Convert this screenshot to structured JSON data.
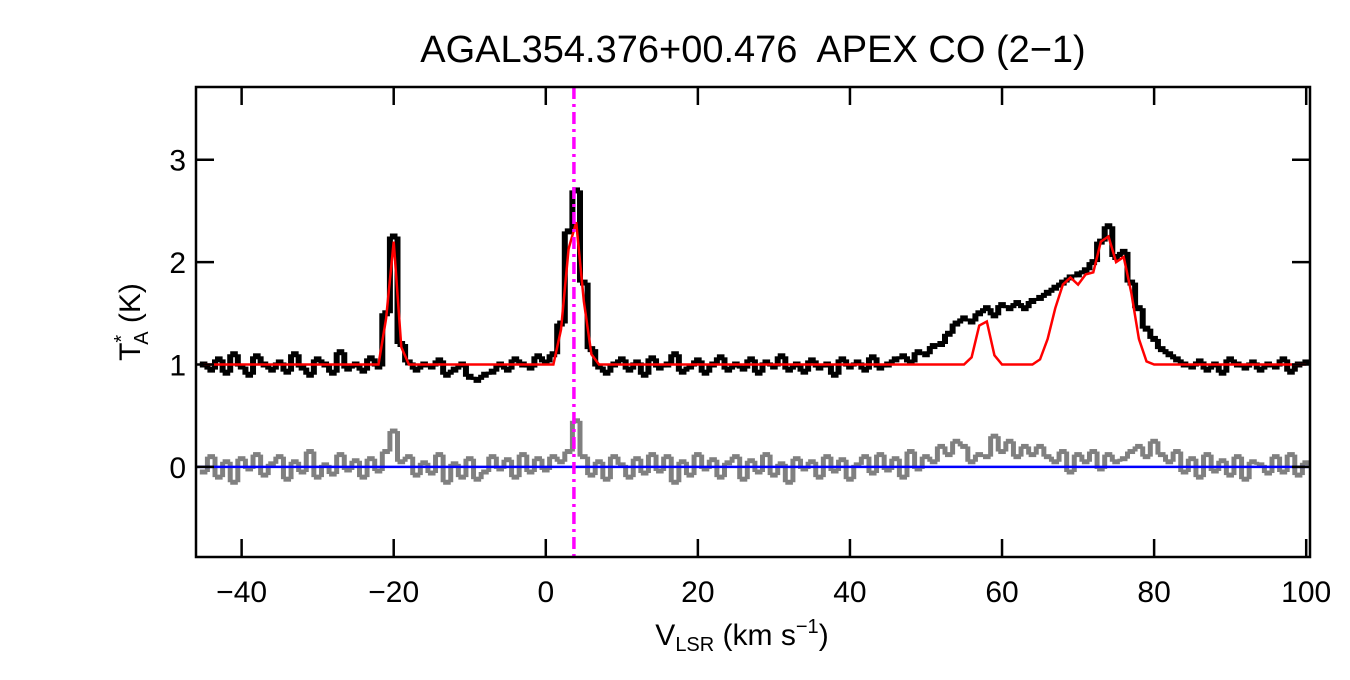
{
  "chart_data": {
    "type": "spectrum",
    "title": "AGAL354.376+00.476  APEX CO (2−1)",
    "xlabel": {
      "main": "V",
      "sub": "LSR",
      "rest": " (km s",
      "sup": "−1",
      "end": ")"
    },
    "ylabel": {
      "main": "T",
      "sup": "*",
      "sub": "A",
      "rest": " (K)"
    },
    "xlim": [
      -46,
      100.5
    ],
    "ylim": [
      -0.88,
      3.71
    ],
    "xticks": [
      {
        "value": -40,
        "label": "−40"
      },
      {
        "value": -20,
        "label": "−20"
      },
      0,
      20,
      40,
      60,
      80,
      100
    ],
    "yticks": [
      0,
      1,
      2,
      3
    ],
    "vline": {
      "x": 3.7,
      "color": "#ff00ff"
    },
    "hline": {
      "y": 0,
      "color": "#0000ff"
    },
    "x": [
      -45,
      -44,
      -43,
      -42,
      -41,
      -40,
      -39,
      -38,
      -37,
      -36,
      -35,
      -34,
      -33,
      -32,
      -31,
      -30,
      -29,
      -28,
      -27,
      -26,
      -25,
      -24,
      -23,
      -22,
      -21,
      -20,
      -19,
      -18,
      -17,
      -16,
      -15,
      -14,
      -13,
      -12,
      -11,
      -10,
      -9,
      -8,
      -7,
      -6,
      -5,
      -4,
      -3,
      -2,
      -1,
      0,
      1,
      2,
      3,
      4,
      5,
      6,
      7,
      8,
      9,
      10,
      11,
      12,
      13,
      14,
      15,
      16,
      17,
      18,
      19,
      20,
      21,
      22,
      23,
      24,
      25,
      26,
      27,
      28,
      29,
      30,
      31,
      32,
      33,
      34,
      35,
      36,
      37,
      38,
      39,
      40,
      41,
      42,
      43,
      44,
      45,
      46,
      47,
      48,
      49,
      50,
      51,
      52,
      53,
      54,
      55,
      56,
      57,
      58,
      59,
      60,
      61,
      62,
      63,
      64,
      65,
      66,
      67,
      68,
      69,
      70,
      71,
      72,
      73,
      74,
      75,
      76,
      77,
      78,
      79,
      80,
      81,
      82,
      83,
      84,
      85,
      86,
      87,
      88,
      89,
      90,
      91,
      92,
      93,
      94,
      95,
      96,
      97,
      98,
      99,
      100
    ],
    "series": [
      {
        "style": "step",
        "color": "#000000",
        "values": [
          1.0,
          0.95,
          1.05,
          0.92,
          1.1,
          0.98,
          0.9,
          1.08,
          1.0,
          0.95,
          1.02,
          0.93,
          1.1,
          0.97,
          0.9,
          1.05,
          1.0,
          0.92,
          1.12,
          0.96,
          1.0,
          0.94,
          1.06,
          0.98,
          1.5,
          2.25,
          1.2,
          1.02,
          0.95,
          1.0,
          0.98,
          1.04,
          0.9,
          0.95,
          1.0,
          0.88,
          0.85,
          0.9,
          0.93,
          1.0,
          0.95,
          1.05,
          1.0,
          0.97,
          1.08,
          1.02,
          1.1,
          1.4,
          2.3,
          2.7,
          1.8,
          1.15,
          0.98,
          0.92,
          1.0,
          1.05,
          0.95,
          1.02,
          0.9,
          1.06,
          0.97,
          1.0,
          1.1,
          0.93,
          0.98,
          1.04,
          0.92,
          1.0,
          1.07,
          0.95,
          1.0,
          0.96,
          1.05,
          0.92,
          1.02,
          0.98,
          1.08,
          0.95,
          1.0,
          0.93,
          1.04,
          0.97,
          1.0,
          0.9,
          1.05,
          0.98,
          1.02,
          0.95,
          1.07,
          0.97,
          1.0,
          1.05,
          1.08,
          1.02,
          1.12,
          1.1,
          1.18,
          1.2,
          1.3,
          1.4,
          1.45,
          1.42,
          1.5,
          1.55,
          1.48,
          1.58,
          1.55,
          1.6,
          1.55,
          1.62,
          1.65,
          1.7,
          1.75,
          1.8,
          1.85,
          1.88,
          1.92,
          2.0,
          2.2,
          2.35,
          2.05,
          2.1,
          1.8,
          1.55,
          1.35,
          1.25,
          1.15,
          1.1,
          1.05,
          1.0,
          0.98,
          1.03,
          0.95,
          1.0,
          0.92,
          1.05,
          1.0,
          0.97,
          1.02,
          0.95,
          1.0,
          0.98,
          1.05,
          0.93,
          1.0,
          1.02
        ]
      },
      {
        "style": "step",
        "color": "#808080",
        "values": [
          -0.05,
          0.1,
          -0.1,
          0.05,
          -0.15,
          0.08,
          -0.02,
          0.12,
          -0.08,
          0.03,
          0.1,
          -0.12,
          0.05,
          -0.05,
          0.15,
          -0.1,
          0.02,
          -0.07,
          0.12,
          -0.03,
          0.06,
          -0.1,
          0.08,
          -0.04,
          0.15,
          0.35,
          0.05,
          0.1,
          -0.08,
          0.04,
          -0.06,
          0.12,
          -0.15,
          0.03,
          -0.1,
          0.08,
          -0.12,
          -0.05,
          0.1,
          -0.02,
          0.07,
          -0.1,
          0.12,
          -0.05,
          0.08,
          -0.03,
          0.1,
          0.05,
          0.15,
          0.45,
          0.1,
          -0.08,
          0.05,
          -0.12,
          0.1,
          0.02,
          -0.1,
          0.08,
          -0.06,
          0.12,
          -0.04,
          0.1,
          -0.15,
          0.05,
          -0.08,
          0.12,
          -0.02,
          0.07,
          -0.1,
          0.04,
          0.1,
          -0.12,
          0.06,
          -0.05,
          0.12,
          -0.08,
          0.03,
          -0.15,
          0.08,
          -0.02,
          0.05,
          -0.1,
          0.1,
          -0.04,
          0.07,
          -0.12,
          0.02,
          0.1,
          -0.06,
          0.12,
          -0.03,
          0.08,
          -0.1,
          0.15,
          -0.02,
          0.1,
          0.05,
          0.2,
          0.12,
          0.25,
          0.2,
          0.05,
          0.12,
          0.1,
          0.3,
          0.15,
          0.25,
          0.1,
          0.2,
          0.12,
          0.2,
          0.1,
          0.05,
          0.15,
          -0.05,
          0.12,
          0.05,
          0.15,
          -0.02,
          0.12,
          0.05,
          0.08,
          0.15,
          0.2,
          0.1,
          0.25,
          0.12,
          0.05,
          0.15,
          -0.05,
          0.08,
          -0.1,
          0.12,
          -0.04,
          0.06,
          -0.08,
          0.1,
          -0.12,
          0.05,
          0.02,
          -0.06,
          0.1,
          -0.05,
          0.12,
          -0.08,
          0.04
        ]
      },
      {
        "style": "line",
        "color": "#ff0000",
        "values": [
          1,
          1,
          1,
          1,
          1,
          1,
          1,
          1,
          1,
          1,
          1,
          1,
          1,
          1,
          1,
          1,
          1,
          1,
          1,
          1,
          1,
          1,
          1,
          1,
          1.45,
          2.2,
          1.17,
          1,
          1,
          1,
          1,
          1,
          1,
          1,
          1,
          1,
          1,
          1,
          1,
          1,
          1,
          1,
          1,
          1,
          1,
          1,
          1,
          1.34,
          2.13,
          2.39,
          1.62,
          1.1,
          1,
          1,
          1,
          1,
          1,
          1,
          1,
          1,
          1,
          1,
          1,
          1,
          1,
          1,
          1,
          1,
          1,
          1,
          1,
          1,
          1,
          1,
          1,
          1,
          1,
          1,
          1,
          1,
          1,
          1,
          1,
          1,
          1,
          1,
          1,
          1,
          1,
          1,
          1,
          1,
          1,
          1,
          1,
          1,
          1,
          1,
          1,
          1,
          1,
          1.07,
          1.38,
          1.42,
          1.09,
          1,
          1,
          1,
          1,
          1,
          1.05,
          1.25,
          1.55,
          1.78,
          1.85,
          1.78,
          1.88,
          1.9,
          2.2,
          2.25,
          2.0,
          2.05,
          1.7,
          1.25,
          1.03,
          1,
          1,
          1,
          1,
          1,
          1,
          1,
          1,
          1,
          1,
          1,
          1,
          1,
          1,
          1,
          1,
          1,
          1,
          1,
          1,
          1
        ]
      }
    ]
  }
}
